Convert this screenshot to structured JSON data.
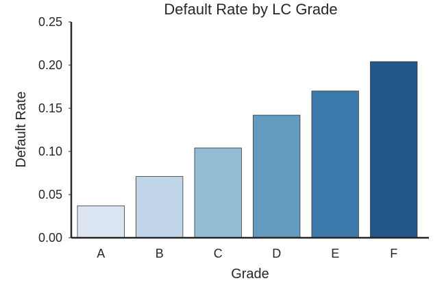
{
  "chart_data": {
    "type": "bar",
    "title": "Default Rate by LC Grade",
    "xlabel": "Grade",
    "ylabel": "Default Rate",
    "categories": [
      "A",
      "B",
      "C",
      "D",
      "E",
      "F"
    ],
    "values": [
      0.037,
      0.071,
      0.104,
      0.142,
      0.17,
      0.204
    ],
    "ylim": [
      0,
      0.25
    ],
    "yticks": [
      0.0,
      0.05,
      0.1,
      0.15,
      0.2,
      0.25
    ],
    "ytick_labels": [
      "0.00",
      "0.05",
      "0.10",
      "0.15",
      "0.20",
      "0.25"
    ],
    "colors": [
      "#dce6f2",
      "#c0d5e8",
      "#93bcd4",
      "#629bbf",
      "#3b79ab",
      "#215789"
    ],
    "grid": false
  }
}
